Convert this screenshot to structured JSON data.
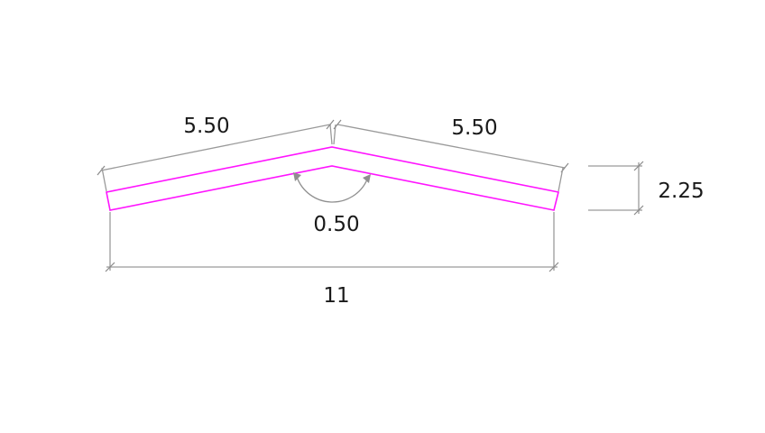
{
  "dimensions": {
    "left_slope": "5.50",
    "right_slope": "5.50",
    "thickness_angle": "0.50",
    "span": "11",
    "height": "2.25"
  },
  "colors": {
    "profile": "#ff14ff",
    "dimension_lines": "#9a9a9a",
    "text": "#1a1a1a"
  }
}
